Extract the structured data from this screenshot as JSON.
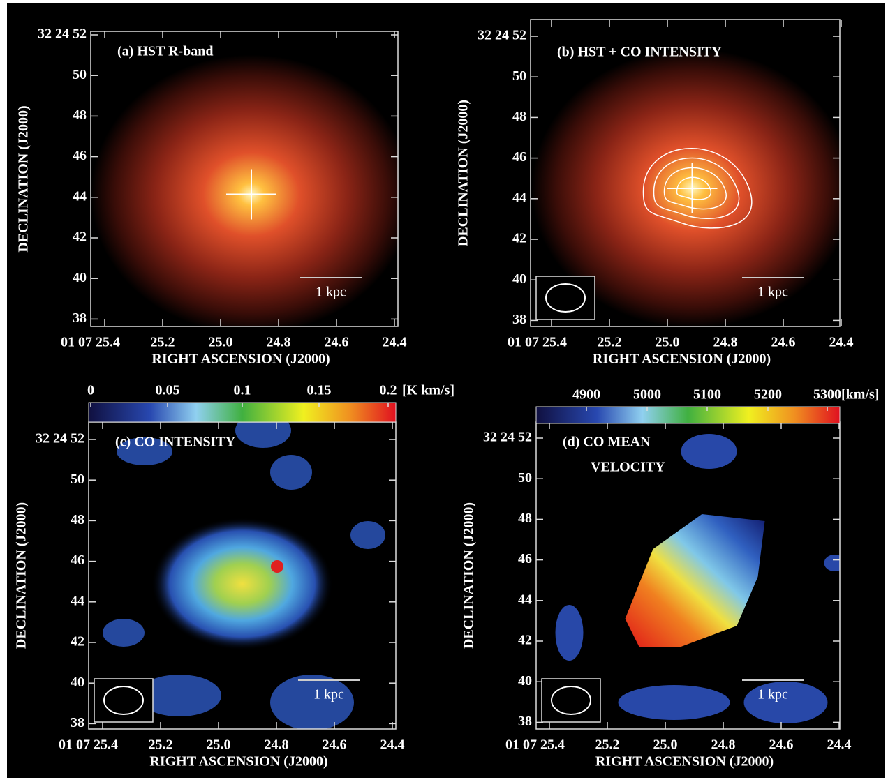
{
  "panels": [
    {
      "label": [
        "(a) HST R-band"
      ],
      "y_ticks": [
        "32 24 52",
        "50",
        "48",
        "46",
        "44",
        "42",
        "40",
        "38"
      ],
      "x_ticks": [
        "01 07 25.4",
        "25.2",
        "25.0",
        "24.8",
        "24.6",
        "24.4"
      ],
      "y_axis_title": "DECLINATION (J2000)",
      "x_axis_title": "RIGHT ASCENSION (J2000)",
      "scale_bar": "1 kpc"
    },
    {
      "label": [
        "(b) HST + CO INTENSITY"
      ],
      "y_ticks": [
        "32 24 52",
        "50",
        "48",
        "46",
        "44",
        "42",
        "40",
        "38"
      ],
      "x_ticks": [
        "01 07 25.4",
        "25.2",
        "25.0",
        "24.8",
        "24.6",
        "24.4"
      ],
      "y_axis_title": "DECLINATION (J2000)",
      "x_axis_title": "RIGHT ASCENSION (J2000)",
      "scale_bar": "1 kpc"
    },
    {
      "label": [
        "(c)  CO INTENSITY"
      ],
      "y_ticks": [
        "32 24 52",
        "50",
        "48",
        "46",
        "44",
        "42",
        "40",
        "38"
      ],
      "x_ticks": [
        "01 07 25.4",
        "25.2",
        "25.0",
        "24.8",
        "24.6",
        "24.4"
      ],
      "y_axis_title": "DECLINATION (J2000)",
      "x_axis_title": "RIGHT ASCENSION (J2000)",
      "scale_bar": "1 kpc",
      "colorbar": {
        "ticks": [
          "0",
          "0.05",
          "0.1",
          "0.15",
          "0.2"
        ],
        "unit": "[K km/s]"
      }
    },
    {
      "label": [
        "(d)  CO MEAN",
        "VELOCITY"
      ],
      "y_ticks": [
        "32 24 52",
        "50",
        "48",
        "46",
        "44",
        "42",
        "40",
        "38"
      ],
      "x_ticks": [
        "01 07 25.4",
        "25.2",
        "25.0",
        "24.8",
        "24.6",
        "24.4"
      ],
      "y_axis_title": "DECLINATION (J2000)",
      "x_axis_title": "RIGHT ASCENSION (J2000)",
      "scale_bar": "1 kpc",
      "colorbar": {
        "ticks": [
          "4900",
          "5000",
          "5100",
          "5200",
          "5300"
        ],
        "unit": "[km/s]"
      }
    }
  ]
}
